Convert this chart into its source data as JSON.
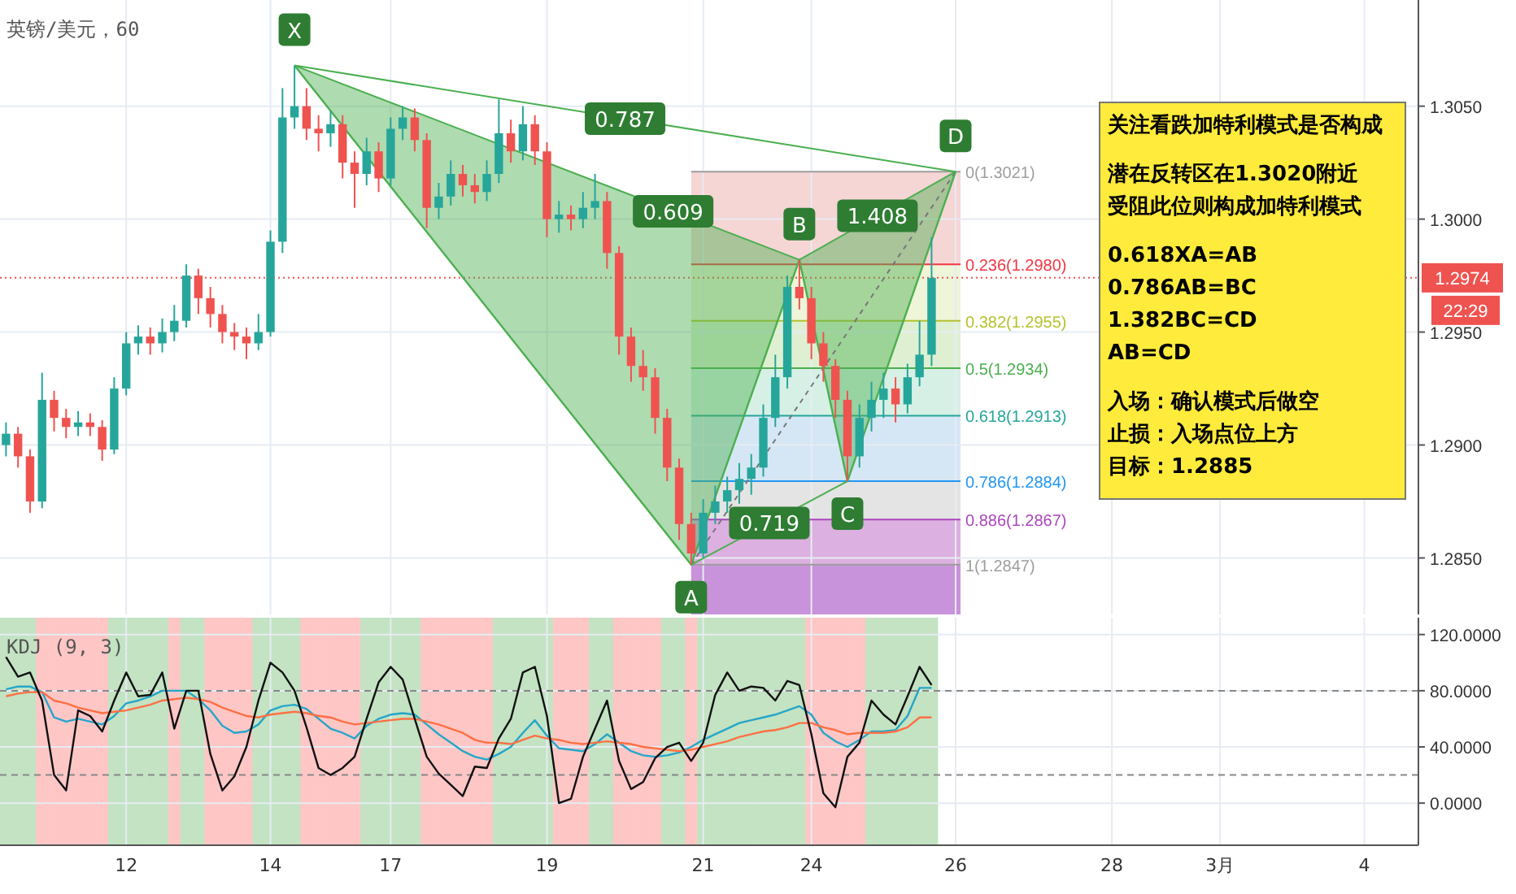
{
  "chart_data": [
    {
      "type": "candlestick",
      "title": "英镑/美元，60",
      "ylim": [
        1.2825,
        1.3097
      ],
      "categories": [
        null,
        null,
        null,
        null,
        null,
        null,
        null,
        null,
        null,
        null,
        null,
        null,
        null,
        null,
        null,
        null,
        null,
        null,
        null,
        null,
        null,
        null,
        null,
        null,
        null,
        null,
        null,
        null,
        null,
        null,
        null,
        null,
        null,
        null,
        null,
        null,
        null,
        null,
        null,
        null,
        null,
        null,
        null,
        null,
        null,
        null,
        null,
        null,
        null,
        null,
        null,
        null,
        null,
        null,
        null,
        null,
        null,
        null,
        null,
        null,
        null,
        null,
        null,
        null,
        null,
        null,
        null,
        null,
        null,
        null,
        null,
        null,
        null,
        null,
        null,
        null,
        null,
        null,
        null,
        null,
        null,
        null,
        null,
        null,
        null,
        null,
        null,
        null,
        null,
        null,
        null,
        null,
        null,
        null,
        null,
        null,
        null,
        null,
        null,
        null,
        null,
        null,
        null,
        null,
        null,
        null,
        null,
        null,
        null,
        null,
        null,
        null,
        null,
        null,
        null,
        null,
        null,
        null
      ],
      "yticks": [
        {
          "value": 1.285,
          "label": "1.2850"
        },
        {
          "value": 1.29,
          "label": "1.2900"
        },
        {
          "value": 1.295,
          "label": "1.2950"
        },
        {
          "value": 1.3,
          "label": "1.3000"
        },
        {
          "value": 1.305,
          "label": "1.3050"
        }
      ],
      "tick_labels": "y",
      "grid": true,
      "ohlc": [
        [
          1.29,
          1.291,
          1.2895,
          1.2905
        ],
        [
          1.2905,
          1.2908,
          1.289,
          1.2895
        ],
        [
          1.2895,
          1.2898,
          1.287,
          1.2875
        ],
        [
          1.2875,
          1.2932,
          1.2872,
          1.292
        ],
        [
          1.292,
          1.2924,
          1.2906,
          1.2912
        ],
        [
          1.2912,
          1.2916,
          1.2903,
          1.2908
        ],
        [
          1.2908,
          1.2915,
          1.2904,
          1.291
        ],
        [
          1.291,
          1.2914,
          1.2904,
          1.2908
        ],
        [
          1.2908,
          1.2911,
          1.2893,
          1.2898
        ],
        [
          1.2898,
          1.293,
          1.2896,
          1.2925
        ],
        [
          1.2925,
          1.295,
          1.2922,
          1.2945
        ],
        [
          1.2945,
          1.2953,
          1.294,
          1.2948
        ],
        [
          1.2948,
          1.2952,
          1.294,
          1.2945
        ],
        [
          1.2945,
          1.2956,
          1.2941,
          1.295
        ],
        [
          1.295,
          1.2962,
          1.2946,
          1.2955
        ],
        [
          1.2955,
          1.298,
          1.2952,
          1.2975
        ],
        [
          1.2975,
          1.2978,
          1.2958,
          1.2965
        ],
        [
          1.2965,
          1.297,
          1.2952,
          1.2958
        ],
        [
          1.2958,
          1.2962,
          1.2945,
          1.295
        ],
        [
          1.295,
          1.2954,
          1.2942,
          1.2948
        ],
        [
          1.2948,
          1.2952,
          1.2938,
          1.2945
        ],
        [
          1.2945,
          1.2958,
          1.2942,
          1.295
        ],
        [
          1.295,
          1.2995,
          1.2948,
          1.299
        ],
        [
          1.299,
          1.3058,
          1.2985,
          1.3045
        ],
        [
          1.3045,
          1.3068,
          1.304,
          1.305
        ],
        [
          1.305,
          1.3058,
          1.3035,
          1.304
        ],
        [
          1.304,
          1.3046,
          1.303,
          1.3038
        ],
        [
          1.3038,
          1.3048,
          1.3032,
          1.3042
        ],
        [
          1.3042,
          1.3046,
          1.3018,
          1.3025
        ],
        [
          1.3025,
          1.303,
          1.3005,
          1.302
        ],
        [
          1.302,
          1.3036,
          1.3015,
          1.303
        ],
        [
          1.303,
          1.3034,
          1.3012,
          1.3018
        ],
        [
          1.3018,
          1.3045,
          1.3015,
          1.304
        ],
        [
          1.304,
          1.305,
          1.3035,
          1.3045
        ],
        [
          1.3045,
          1.3049,
          1.303,
          1.3035
        ],
        [
          1.3035,
          1.3038,
          1.2996,
          1.3005
        ],
        [
          1.3005,
          1.3016,
          1.3,
          1.301
        ],
        [
          1.301,
          1.3026,
          1.3006,
          1.302
        ],
        [
          1.302,
          1.3024,
          1.301,
          1.3015
        ],
        [
          1.3015,
          1.302,
          1.3007,
          1.3012
        ],
        [
          1.3012,
          1.3026,
          1.3008,
          1.302
        ],
        [
          1.302,
          1.3053,
          1.3016,
          1.3038
        ],
        [
          1.3038,
          1.3044,
          1.3025,
          1.303
        ],
        [
          1.303,
          1.305,
          1.3026,
          1.3042
        ],
        [
          1.3042,
          1.3046,
          1.3024,
          1.303
        ],
        [
          1.303,
          1.3034,
          1.2992,
          1.3
        ],
        [
          1.3,
          1.3008,
          1.2994,
          1.3002
        ],
        [
          1.3002,
          1.3006,
          1.2995,
          1.3
        ],
        [
          1.3,
          1.3012,
          1.2996,
          1.3005
        ],
        [
          1.3005,
          1.302,
          1.3,
          1.3008
        ],
        [
          1.3008,
          1.3012,
          1.2978,
          1.2985
        ],
        [
          1.2985,
          1.2988,
          1.294,
          1.2948
        ],
        [
          1.2948,
          1.2952,
          1.2928,
          1.2935
        ],
        [
          1.2935,
          1.2942,
          1.2924,
          1.293
        ],
        [
          1.293,
          1.2934,
          1.2905,
          1.2912
        ],
        [
          1.2912,
          1.2916,
          1.2884,
          1.289
        ],
        [
          1.289,
          1.2894,
          1.2858,
          1.2865
        ],
        [
          1.2865,
          1.287,
          1.2847,
          1.2852
        ],
        [
          1.2852,
          1.2876,
          1.285,
          1.287
        ],
        [
          1.287,
          1.2882,
          1.2865,
          1.2875
        ],
        [
          1.2875,
          1.2886,
          1.287,
          1.288
        ],
        [
          1.288,
          1.2892,
          1.2874,
          1.2885
        ],
        [
          1.2885,
          1.2896,
          1.2878,
          1.289
        ],
        [
          1.289,
          1.2918,
          1.2886,
          1.2912
        ],
        [
          1.2912,
          1.294,
          1.2908,
          1.293
        ],
        [
          1.293,
          1.2975,
          1.2925,
          1.297
        ],
        [
          1.297,
          1.2982,
          1.296,
          1.2965
        ],
        [
          1.2965,
          1.297,
          1.2938,
          1.2945
        ],
        [
          1.2945,
          1.295,
          1.2928,
          1.2935
        ],
        [
          1.2935,
          1.2938,
          1.2912,
          1.292
        ],
        [
          1.292,
          1.2924,
          1.2884,
          1.2895
        ],
        [
          1.2895,
          1.2918,
          1.289,
          1.2912
        ],
        [
          1.2912,
          1.2928,
          1.2906,
          1.292
        ],
        [
          1.292,
          1.2932,
          1.2912,
          1.2925
        ],
        [
          1.2925,
          1.293,
          1.291,
          1.2918
        ],
        [
          1.2918,
          1.2936,
          1.2914,
          1.293
        ],
        [
          1.293,
          1.2955,
          1.2926,
          1.294
        ],
        [
          1.294,
          1.2992,
          1.2935,
          1.2974
        ],
        null,
        null,
        null,
        null,
        null,
        null,
        null,
        null,
        null,
        null,
        null,
        null,
        null,
        null,
        null,
        null,
        null,
        null,
        null,
        null,
        null,
        null,
        null,
        null,
        null,
        null,
        null,
        null,
        null,
        null,
        null,
        null,
        null,
        null,
        null,
        null,
        null,
        null,
        null,
        null
      ],
      "series": [
        {
          "type": "line",
          "color": "#4caf50",
          "values": [
            null,
            null,
            null,
            null,
            null,
            null,
            null,
            null,
            null,
            null,
            null,
            null,
            null,
            null,
            null,
            null,
            null,
            null,
            null,
            null,
            null,
            null,
            null,
            null,
            1.3068,
            null,
            null,
            null,
            null,
            null,
            null,
            null,
            null,
            null,
            null,
            null,
            null,
            null,
            null,
            null,
            null,
            null,
            null,
            null,
            null,
            null,
            null,
            null,
            null,
            null,
            null,
            null,
            null,
            null,
            null,
            null,
            null,
            1.2847,
            null,
            null,
            null,
            null,
            null,
            null,
            null,
            null,
            1.2982,
            null,
            null,
            null,
            1.2884,
            null,
            null,
            null,
            null,
            null,
            null,
            null,
            null,
            1.3021,
            null,
            null,
            null,
            null,
            null,
            null,
            null,
            null,
            null,
            null,
            null,
            null,
            null,
            null,
            null,
            null,
            null,
            null,
            null,
            null,
            null,
            null,
            null,
            null,
            null,
            null,
            null,
            null,
            null,
            null,
            null,
            null,
            null,
            null,
            null,
            null,
            null,
            null
          ]
        }
      ],
      "marker": "none",
      "bands": [
        {
          "axis": "y",
          "from": 1.298,
          "to": 1.3021,
          "color": "#f6d5d5"
        },
        {
          "axis": "y",
          "from": 1.2955,
          "to": 1.298,
          "color": "#eef5d8"
        },
        {
          "axis": "y",
          "from": 1.2934,
          "to": 1.2955,
          "color": "#dff0d2"
        },
        {
          "axis": "y",
          "from": 1.2913,
          "to": 1.2934,
          "color": "#d7f0e6"
        },
        {
          "axis": "y",
          "from": 1.2884,
          "to": 1.2913,
          "color": "#d5e7f4"
        },
        {
          "axis": "y",
          "from": 1.2867,
          "to": 1.2884,
          "color": "#e4e4e4"
        },
        {
          "axis": "y",
          "from": 1.2847,
          "to": 1.2867,
          "color": "#dcb0e0"
        },
        {
          "axis": "y",
          "from": 1.2825,
          "to": 1.2847,
          "color": "#c893da"
        }
      ],
      "ref_lines": [
        {
          "axis": "y",
          "value": 1.3021,
          "label": "0(1.3021)",
          "color": "#9e9e9e",
          "line_style": "solid"
        },
        {
          "axis": "y",
          "value": 1.298,
          "label": "0.236(1.2980)",
          "color": "#f23645",
          "line_style": "solid"
        },
        {
          "axis": "y",
          "value": 1.2955,
          "label": "0.382(1.2955)",
          "color": "#b5c22e",
          "line_style": "solid"
        },
        {
          "axis": "y",
          "value": 1.2934,
          "label": "0.5(1.2934)",
          "color": "#4caf50",
          "line_style": "solid"
        },
        {
          "axis": "y",
          "value": 1.2913,
          "label": "0.618(1.2913)",
          "color": "#26a69a",
          "line_style": "solid"
        },
        {
          "axis": "y",
          "value": 1.2884,
          "label": "0.786(1.2884)",
          "color": "#2196f3",
          "line_style": "solid"
        },
        {
          "axis": "y",
          "value": 1.2867,
          "label": "0.886(1.2867)",
          "color": "#ab47bc",
          "line_style": "solid"
        },
        {
          "axis": "y",
          "value": 1.2847,
          "label": "1(1.2847)",
          "color": "#9e9e9e",
          "line_style": "solid"
        },
        {
          "axis": "y",
          "value": 1.2974,
          "label": "1.2974",
          "color": "#ef5350",
          "line_style": "dotted"
        }
      ],
      "annotations": [
        {
          "text": "X",
          "y": 1.3068
        },
        {
          "text": "A",
          "y": 1.2847
        },
        {
          "text": "B",
          "y": 1.2982
        },
        {
          "text": "C",
          "y": 1.2884
        },
        {
          "text": "D",
          "y": 1.3021
        },
        "0.609",
        "0.787",
        "1.408",
        "0.719",
        "22:29",
        "关注看跌加特利模式是否构成",
        "潜在反转区在1.3020附近",
        "受阻此位则构成加特利模式",
        "0.618XA=AB",
        "0.786AB=BC",
        "1.382BC=CD",
        "AB=CD",
        "入场：确认模式后做空",
        "止损：入场点位上方",
        "目标：1.2885"
      ]
    },
    {
      "type": "line",
      "title": "KDJ (9, 3)",
      "ylim": [
        -30,
        132
      ],
      "categories": [
        null,
        null,
        null,
        null,
        null,
        null,
        null,
        null,
        null,
        null,
        "12",
        null,
        null,
        null,
        null,
        null,
        null,
        null,
        null,
        null,
        null,
        null,
        "14",
        null,
        null,
        null,
        null,
        null,
        null,
        null,
        null,
        null,
        "17",
        null,
        null,
        null,
        null,
        null,
        null,
        null,
        null,
        null,
        null,
        null,
        null,
        "19",
        null,
        null,
        null,
        null,
        null,
        null,
        null,
        null,
        null,
        null,
        null,
        null,
        "21",
        null,
        null,
        null,
        null,
        null,
        null,
        null,
        null,
        "24",
        null,
        null,
        null,
        null,
        null,
        null,
        null,
        null,
        null,
        null,
        null,
        "26",
        null,
        null,
        null,
        null,
        null,
        null,
        null,
        null,
        null,
        null,
        null,
        null,
        "28",
        null,
        null,
        null,
        null,
        null,
        null,
        null,
        null,
        "3月",
        null,
        null,
        null,
        null,
        null,
        null,
        null,
        null,
        null,
        null,
        null,
        "4",
        null,
        null,
        null,
        null
      ],
      "yticks": [
        {
          "value": 0,
          "label": "0.0000"
        },
        {
          "value": 40,
          "label": "40.0000"
        },
        {
          "value": 80,
          "label": "80.0000"
        },
        {
          "value": 120,
          "label": "120.0000"
        }
      ],
      "grid": true,
      "marker": "none",
      "series": [
        {
          "color": "#26a6c9",
          "values": [
            81,
            83,
            83,
            79,
            61,
            58,
            60,
            58,
            56,
            62,
            71,
            73,
            76,
            80,
            80,
            80,
            74,
            66,
            55,
            50,
            51,
            56,
            66,
            69,
            70,
            67,
            60,
            53,
            50,
            46,
            55,
            60,
            63,
            64,
            63,
            56,
            49,
            43,
            37,
            33,
            31,
            35,
            40,
            50,
            59,
            48,
            39,
            38,
            37,
            42,
            49,
            43,
            37,
            34,
            33,
            34,
            36,
            40,
            45,
            49,
            53,
            57,
            59,
            61,
            63,
            66,
            69,
            63,
            50,
            44,
            40,
            45,
            51,
            51,
            52,
            62,
            82,
            82,
            null,
            null,
            null,
            null,
            null,
            null,
            null,
            null,
            null,
            null,
            null,
            null,
            null,
            null,
            null,
            null,
            null,
            null,
            null,
            null,
            null,
            null,
            null,
            null,
            null,
            null,
            null,
            null,
            null,
            null,
            null,
            null,
            null,
            null,
            null,
            null,
            null,
            null,
            null,
            null
          ]
        },
        {
          "color": "#ff7043",
          "values": [
            76,
            78,
            79,
            79,
            73,
            71,
            68,
            66,
            64,
            65,
            66,
            68,
            70,
            73,
            74,
            75,
            74,
            72,
            68,
            65,
            62,
            61,
            63,
            64,
            65,
            64,
            62,
            61,
            58,
            56,
            57,
            58,
            59,
            60,
            60,
            58,
            56,
            53,
            50,
            45,
            43,
            43,
            42,
            45,
            48,
            46,
            45,
            43,
            42,
            43,
            44,
            43,
            42,
            40,
            39,
            38,
            37,
            38,
            40,
            42,
            44,
            47,
            49,
            51,
            52,
            54,
            57,
            57,
            54,
            52,
            49,
            50,
            50,
            50,
            51,
            54,
            61,
            61,
            null,
            null,
            null,
            null,
            null,
            null,
            null,
            null,
            null,
            null,
            null,
            null,
            null,
            null,
            null,
            null,
            null,
            null,
            null,
            null,
            null,
            null,
            null,
            null,
            null,
            null,
            null,
            null,
            null,
            null,
            null,
            null,
            null,
            null,
            null,
            null,
            null,
            null,
            null,
            null
          ]
        },
        {
          "color": "#111111",
          "values": [
            104,
            90,
            93,
            73,
            20,
            9,
            66,
            62,
            51,
            73,
            93,
            76,
            77,
            93,
            53,
            80,
            80,
            35,
            9,
            19,
            40,
            73,
            100,
            93,
            80,
            54,
            25,
            20,
            25,
            33,
            60,
            86,
            97,
            88,
            60,
            33,
            21,
            13,
            5,
            26,
            25,
            46,
            60,
            93,
            97,
            62,
            0,
            3,
            33,
            53,
            73,
            30,
            10,
            15,
            32,
            40,
            43,
            30,
            43,
            77,
            93,
            80,
            83,
            82,
            73,
            87,
            84,
            49,
            7,
            -3,
            33,
            43,
            73,
            63,
            56,
            76,
            97,
            84,
            null,
            null,
            null,
            null,
            null,
            null,
            null,
            null,
            null,
            null,
            null,
            null,
            null,
            null,
            null,
            null,
            null,
            null,
            null,
            null,
            null,
            null,
            null,
            null,
            null,
            null,
            null,
            null,
            null,
            null,
            null,
            null,
            null,
            null,
            null,
            null,
            null,
            null,
            null,
            null
          ]
        }
      ],
      "ref_lines": [
        {
          "axis": "y",
          "value": 80,
          "color": "#888888",
          "line_style": "dashed"
        },
        {
          "axis": "y",
          "value": 20,
          "color": "#888888",
          "line_style": "dashed"
        }
      ]
    }
  ]
}
